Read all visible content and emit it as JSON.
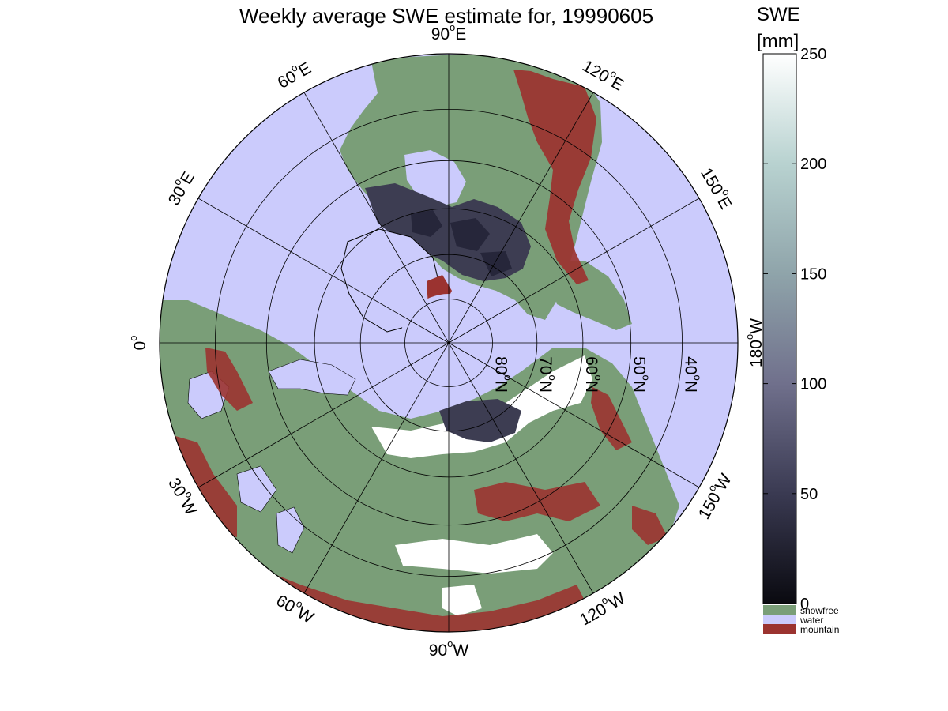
{
  "title": "Weekly average SWE estimate for, 19990605",
  "colorbar": {
    "label_line1": "SWE",
    "label_line2": "[mm]",
    "ticks": [
      {
        "value": 0,
        "label": "0"
      },
      {
        "value": 50,
        "label": "50"
      },
      {
        "value": 100,
        "label": "100"
      },
      {
        "value": 150,
        "label": "150"
      },
      {
        "value": 200,
        "label": "200"
      },
      {
        "value": 250,
        "label": "250"
      }
    ],
    "range": [
      0,
      250
    ],
    "gradient": [
      "#0a0a10",
      "#3a3a52",
      "#70708c",
      "#8fa4aa",
      "#b8d2d0",
      "#ffffff"
    ],
    "categories": [
      {
        "label": "snowfree",
        "color": "#7a9e78"
      },
      {
        "label": "water",
        "color": "#cbcbfc"
      },
      {
        "label": "mountain",
        "color": "#9b3330"
      }
    ]
  },
  "map": {
    "projection": "north-polar-stereographic",
    "colors": {
      "ocean": "#cbcbfc",
      "land": "#7a9e78",
      "mountain": "#9b3330",
      "snow": "#ffffff",
      "swe_dark": "#3d3d52"
    },
    "longitude_labels": [
      {
        "lon_deg": 90,
        "text": "90",
        "unit": "W"
      },
      {
        "lon_deg": 60,
        "text": "60",
        "unit": "W"
      },
      {
        "lon_deg": 120,
        "text": "120",
        "unit": "W"
      },
      {
        "lon_deg": 30,
        "text": "30",
        "unit": "W"
      },
      {
        "lon_deg": 150,
        "text": "150",
        "unit": "W"
      },
      {
        "lon_deg": 0,
        "text": "0",
        "unit": ""
      },
      {
        "lon_deg": 180,
        "text": "180",
        "unit": "W"
      },
      {
        "lon_deg": -30,
        "text": "30",
        "unit": "E"
      },
      {
        "lon_deg": -150,
        "text": "150",
        "unit": "E"
      },
      {
        "lon_deg": -60,
        "text": "60",
        "unit": "E"
      },
      {
        "lon_deg": -120,
        "text": "120",
        "unit": "E"
      },
      {
        "lon_deg": -90,
        "text": "90",
        "unit": "E"
      }
    ],
    "latitude_labels": [
      {
        "lat_deg": 80,
        "text": "80",
        "unit": "N"
      },
      {
        "lat_deg": 70,
        "text": "70",
        "unit": "N"
      },
      {
        "lat_deg": 60,
        "text": "60",
        "unit": "N"
      },
      {
        "lat_deg": 50,
        "text": "50",
        "unit": "N"
      },
      {
        "lat_deg": 40,
        "text": "40",
        "unit": "N"
      }
    ]
  }
}
